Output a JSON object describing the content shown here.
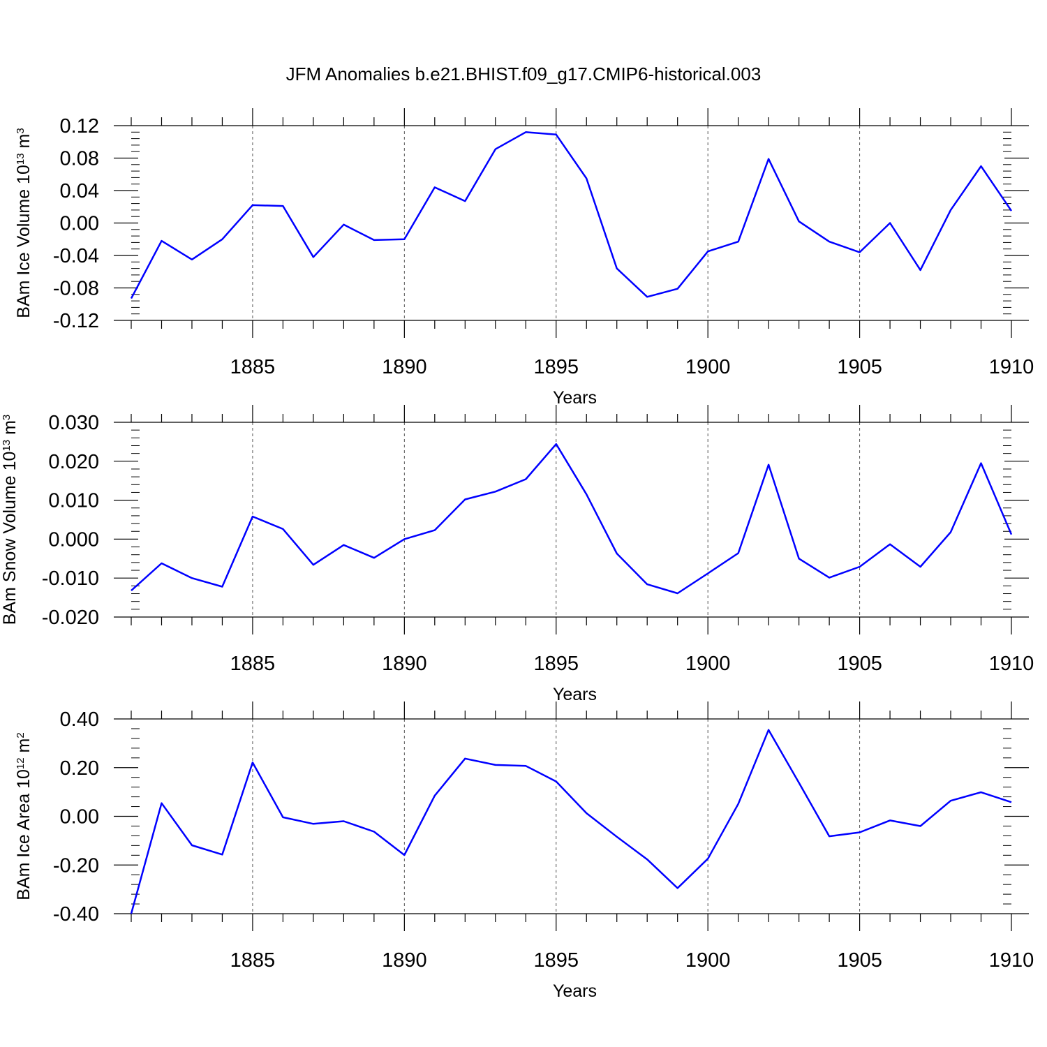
{
  "title": "JFM Anomalies b.e21.BHIST.f09_g17.CMIP6-historical.003",
  "colors": {
    "line": "#0000ff",
    "axis": "#000000",
    "grid": "#555555",
    "background": "#ffffff"
  },
  "chart_data": [
    {
      "type": "line",
      "id": "ice-volume",
      "ylabel": "BAm Ice Volume 10",
      "ylabel_exp": "13",
      "ylabel_unit": "m",
      "ylabel_unit_exp": "3",
      "xlabel": "Years",
      "xlim": [
        1881,
        1910
      ],
      "ylim": [
        -0.12,
        0.12
      ],
      "xticks": [
        1885,
        1890,
        1895,
        1900,
        1905,
        1910
      ],
      "yticks": [
        -0.12,
        -0.08,
        -0.04,
        0.0,
        0.04,
        0.08,
        0.12
      ],
      "ytick_labels": [
        "-0.12",
        "-0.08",
        "-0.04",
        "0.00",
        "0.04",
        "0.08",
        "0.12"
      ],
      "grid": "x-dashed",
      "x": [
        1881,
        1882,
        1883,
        1884,
        1885,
        1886,
        1887,
        1888,
        1889,
        1890,
        1891,
        1892,
        1893,
        1894,
        1895,
        1896,
        1897,
        1898,
        1899,
        1900,
        1901,
        1902,
        1903,
        1904,
        1905,
        1906,
        1907,
        1908,
        1909,
        1910
      ],
      "values": [
        -0.093,
        -0.022,
        -0.045,
        -0.02,
        0.022,
        0.021,
        -0.042,
        -0.002,
        -0.021,
        -0.02,
        0.044,
        0.027,
        0.091,
        0.112,
        0.109,
        0.055,
        -0.056,
        -0.091,
        -0.081,
        -0.035,
        -0.023,
        0.079,
        0.002,
        -0.023,
        -0.036,
        0.0,
        -0.058,
        0.016,
        0.07,
        0.015
      ]
    },
    {
      "type": "line",
      "id": "snow-volume",
      "ylabel": "BAm Snow Volume 10",
      "ylabel_exp": "13",
      "ylabel_unit": "m",
      "ylabel_unit_exp": "3",
      "xlabel": "Years",
      "xlim": [
        1881,
        1910
      ],
      "ylim": [
        -0.02,
        0.03
      ],
      "xticks": [
        1885,
        1890,
        1895,
        1900,
        1905,
        1910
      ],
      "yticks": [
        -0.02,
        -0.01,
        0.0,
        0.01,
        0.02,
        0.03
      ],
      "ytick_labels": [
        "-0.020",
        "-0.010",
        "0.000",
        "0.010",
        "0.020",
        "0.030"
      ],
      "grid": "x-dashed",
      "x": [
        1881,
        1882,
        1883,
        1884,
        1885,
        1886,
        1887,
        1888,
        1889,
        1890,
        1891,
        1892,
        1893,
        1894,
        1895,
        1896,
        1897,
        1898,
        1899,
        1900,
        1901,
        1902,
        1903,
        1904,
        1905,
        1906,
        1907,
        1908,
        1909,
        1910
      ],
      "values": [
        -0.0132,
        -0.0062,
        -0.01,
        -0.0122,
        0.0058,
        0.0026,
        -0.0066,
        -0.0015,
        -0.0048,
        0.0,
        0.0023,
        0.0102,
        0.0122,
        0.0154,
        0.0244,
        0.0115,
        -0.0037,
        -0.0116,
        -0.0139,
        -0.0088,
        -0.0036,
        0.0191,
        -0.005,
        -0.0099,
        -0.0071,
        -0.0013,
        -0.0071,
        0.0018,
        0.0195,
        0.0012
      ]
    },
    {
      "type": "line",
      "id": "ice-area",
      "ylabel": "BAm Ice Area 10",
      "ylabel_exp": "12",
      "ylabel_unit": "m",
      "ylabel_unit_exp": "2",
      "xlabel": "Years",
      "xlim": [
        1881,
        1910
      ],
      "ylim": [
        -0.4,
        0.4
      ],
      "xticks": [
        1885,
        1890,
        1895,
        1900,
        1905,
        1910
      ],
      "yticks": [
        -0.4,
        -0.2,
        0.0,
        0.2,
        0.4
      ],
      "ytick_labels": [
        "-0.40",
        "-0.20",
        "0.00",
        "0.20",
        "0.40"
      ],
      "grid": "x-dashed",
      "x": [
        1881,
        1882,
        1883,
        1884,
        1885,
        1886,
        1887,
        1888,
        1889,
        1890,
        1891,
        1892,
        1893,
        1894,
        1895,
        1896,
        1897,
        1898,
        1899,
        1900,
        1901,
        1902,
        1903,
        1904,
        1905,
        1906,
        1907,
        1908,
        1909,
        1910
      ],
      "values": [
        -0.4,
        0.054,
        -0.119,
        -0.157,
        0.221,
        -0.004,
        -0.031,
        -0.02,
        -0.063,
        -0.159,
        0.085,
        0.237,
        0.211,
        0.207,
        0.143,
        0.013,
        -0.084,
        -0.177,
        -0.295,
        -0.174,
        0.051,
        0.355,
        0.138,
        -0.082,
        -0.066,
        -0.017,
        -0.04,
        0.064,
        0.099,
        0.058
      ]
    }
  ]
}
